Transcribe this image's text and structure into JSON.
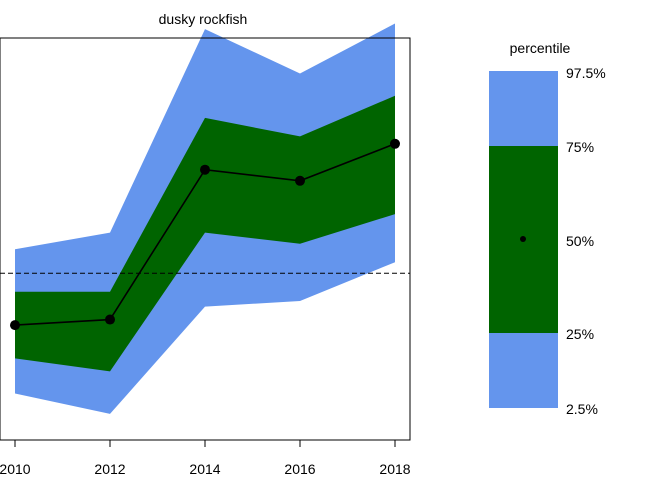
{
  "chart_data": {
    "type": "area",
    "title": "dusky rockfish",
    "xlabel": "",
    "ylabel": "",
    "x": [
      2010,
      2012,
      2014,
      2016,
      2018
    ],
    "x_ticks": [
      "2010",
      "2012",
      "2014",
      "2016",
      "2018"
    ],
    "xlim": [
      2010,
      2018
    ],
    "ylim": [
      0,
      100
    ],
    "series": [
      {
        "key": "p2_5",
        "values": [
          8.5,
          3.0,
          32.0,
          33.5,
          44.0
        ]
      },
      {
        "key": "p25",
        "values": [
          18.0,
          14.5,
          52.0,
          49.0,
          57.0
        ]
      },
      {
        "key": "p50",
        "values": [
          27.0,
          28.5,
          69.0,
          66.0,
          76.0
        ]
      },
      {
        "key": "p75",
        "values": [
          36.0,
          36.0,
          83.0,
          78.0,
          89.0
        ]
      },
      {
        "key": "p97_5",
        "values": [
          47.5,
          52.0,
          107.0,
          95.0,
          108.5
        ]
      }
    ],
    "reference_line": {
      "y": 41.0,
      "style": "dashed"
    },
    "colors": {
      "outer_band": "#6495ED",
      "inner_band": "#006400",
      "median": "#000000"
    },
    "legend": {
      "title": "percentile",
      "position": "right",
      "labels": [
        "97.5%",
        "75%",
        "50%",
        "25%",
        "2.5%"
      ]
    }
  }
}
